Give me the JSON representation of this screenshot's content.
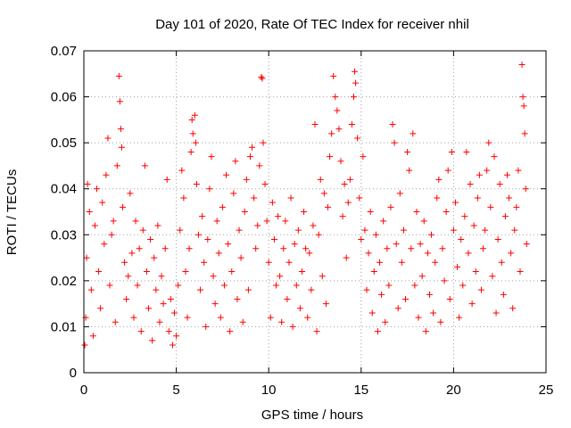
{
  "chart_data": {
    "type": "scatter",
    "title": "Day 101 of 2020, Rate Of TEC Index for receiver nhil",
    "xlabel": "GPS time / hours",
    "ylabel": "ROTI / TECUs",
    "xlim": [
      0,
      25
    ],
    "ylim": [
      0,
      0.07
    ],
    "x_ticks": [
      0,
      5,
      10,
      15,
      20,
      25
    ],
    "x_tick_labels": [
      "0",
      "5",
      "10",
      "15",
      "20",
      "25"
    ],
    "y_ticks": [
      0,
      0.01,
      0.02,
      0.03,
      0.04,
      0.05,
      0.06,
      0.07
    ],
    "y_tick_labels": [
      "0",
      "0.01",
      "0.02",
      "0.03",
      "0.04",
      "0.05",
      "0.06",
      "0.07"
    ],
    "grid": true,
    "marker": "+",
    "color": "#ff0000",
    "series": [
      {
        "name": "ROTI",
        "points": [
          [
            0.05,
            0.006
          ],
          [
            0.1,
            0.012
          ],
          [
            0.15,
            0.025
          ],
          [
            0.2,
            0.041
          ],
          [
            0.3,
            0.035
          ],
          [
            0.4,
            0.018
          ],
          [
            0.5,
            0.008
          ],
          [
            0.6,
            0.032
          ],
          [
            0.7,
            0.04
          ],
          [
            0.8,
            0.022
          ],
          [
            0.9,
            0.014
          ],
          [
            1.0,
            0.037
          ],
          [
            1.1,
            0.028
          ],
          [
            1.2,
            0.043
          ],
          [
            1.3,
            0.051
          ],
          [
            1.4,
            0.019
          ],
          [
            1.5,
            0.03
          ],
          [
            1.6,
            0.033
          ],
          [
            1.7,
            0.011
          ],
          [
            1.8,
            0.045
          ],
          [
            1.9,
            0.0645
          ],
          [
            1.95,
            0.059
          ],
          [
            2.0,
            0.053
          ],
          [
            2.05,
            0.049
          ],
          [
            2.1,
            0.036
          ],
          [
            2.2,
            0.024
          ],
          [
            2.3,
            0.016
          ],
          [
            2.4,
            0.021
          ],
          [
            2.5,
            0.039
          ],
          [
            2.6,
            0.026
          ],
          [
            2.7,
            0.012
          ],
          [
            2.8,
            0.033
          ],
          [
            2.9,
            0.019
          ],
          [
            3.0,
            0.027
          ],
          [
            3.1,
            0.009
          ],
          [
            3.2,
            0.031
          ],
          [
            3.3,
            0.045
          ],
          [
            3.4,
            0.022
          ],
          [
            3.5,
            0.014
          ],
          [
            3.6,
            0.029
          ],
          [
            3.7,
            0.007
          ],
          [
            3.8,
            0.025
          ],
          [
            3.9,
            0.018
          ],
          [
            4.0,
            0.032
          ],
          [
            4.1,
            0.011
          ],
          [
            4.2,
            0.021
          ],
          [
            4.3,
            0.015
          ],
          [
            4.4,
            0.027
          ],
          [
            4.5,
            0.042
          ],
          [
            4.6,
            0.009
          ],
          [
            4.7,
            0.016
          ],
          [
            4.8,
            0.006
          ],
          [
            4.9,
            0.013
          ],
          [
            5.0,
            0.008
          ],
          [
            5.1,
            0.019
          ],
          [
            5.2,
            0.031
          ],
          [
            5.3,
            0.044
          ],
          [
            5.4,
            0.038
          ],
          [
            5.5,
            0.022
          ],
          [
            5.6,
            0.012
          ],
          [
            5.7,
            0.027
          ],
          [
            5.8,
            0.048
          ],
          [
            5.85,
            0.055
          ],
          [
            5.9,
            0.052
          ],
          [
            6.0,
            0.056
          ],
          [
            6.05,
            0.05
          ],
          [
            6.1,
            0.041
          ],
          [
            6.2,
            0.03
          ],
          [
            6.3,
            0.018
          ],
          [
            6.4,
            0.034
          ],
          [
            6.5,
            0.024
          ],
          [
            6.6,
            0.01
          ],
          [
            6.7,
            0.029
          ],
          [
            6.8,
            0.04
          ],
          [
            6.9,
            0.047
          ],
          [
            7.0,
            0.021
          ],
          [
            7.1,
            0.015
          ],
          [
            7.2,
            0.033
          ],
          [
            7.3,
            0.026
          ],
          [
            7.4,
            0.012
          ],
          [
            7.5,
            0.036
          ],
          [
            7.6,
            0.019
          ],
          [
            7.7,
            0.043
          ],
          [
            7.8,
            0.028
          ],
          [
            7.9,
            0.009
          ],
          [
            8.0,
            0.022
          ],
          [
            8.1,
            0.039
          ],
          [
            8.2,
            0.046
          ],
          [
            8.3,
            0.016
          ],
          [
            8.4,
            0.031
          ],
          [
            8.5,
            0.025
          ],
          [
            8.6,
            0.011
          ],
          [
            8.7,
            0.035
          ],
          [
            8.8,
            0.042
          ],
          [
            8.9,
            0.018
          ],
          [
            9.0,
            0.047
          ],
          [
            9.1,
            0.049
          ],
          [
            9.2,
            0.038
          ],
          [
            9.3,
            0.027
          ],
          [
            9.4,
            0.032
          ],
          [
            9.5,
            0.045
          ],
          [
            9.6,
            0.0643
          ],
          [
            9.65,
            0.064
          ],
          [
            9.7,
            0.05
          ],
          [
            9.8,
            0.041
          ],
          [
            9.9,
            0.033
          ],
          [
            10.0,
            0.024
          ],
          [
            10.1,
            0.012
          ],
          [
            10.2,
            0.037
          ],
          [
            10.3,
            0.029
          ],
          [
            10.4,
            0.019
          ],
          [
            10.5,
            0.034
          ],
          [
            10.6,
            0.021
          ],
          [
            10.7,
            0.011
          ],
          [
            10.8,
            0.027
          ],
          [
            10.9,
            0.033
          ],
          [
            11.0,
            0.016
          ],
          [
            11.1,
            0.024
          ],
          [
            11.2,
            0.038
          ],
          [
            11.3,
            0.01
          ],
          [
            11.4,
            0.028
          ],
          [
            11.5,
            0.019
          ],
          [
            11.6,
            0.031
          ],
          [
            11.7,
            0.014
          ],
          [
            11.8,
            0.022
          ],
          [
            11.9,
            0.035
          ],
          [
            12.0,
            0.027
          ],
          [
            12.1,
            0.012
          ],
          [
            12.2,
            0.026
          ],
          [
            12.3,
            0.018
          ],
          [
            12.4,
            0.032
          ],
          [
            12.5,
            0.054
          ],
          [
            12.6,
            0.009
          ],
          [
            12.7,
            0.03
          ],
          [
            12.8,
            0.042
          ],
          [
            12.9,
            0.021
          ],
          [
            13.0,
            0.039
          ],
          [
            13.1,
            0.015
          ],
          [
            13.2,
            0.036
          ],
          [
            13.3,
            0.047
          ],
          [
            13.4,
            0.052
          ],
          [
            13.5,
            0.0645
          ],
          [
            13.6,
            0.06
          ],
          [
            13.7,
            0.057
          ],
          [
            13.8,
            0.053
          ],
          [
            13.9,
            0.046
          ],
          [
            14.0,
            0.034
          ],
          [
            14.1,
            0.041
          ],
          [
            14.2,
            0.025
          ],
          [
            14.3,
            0.037
          ],
          [
            14.4,
            0.042
          ],
          [
            14.5,
            0.054
          ],
          [
            14.6,
            0.06
          ],
          [
            14.65,
            0.0655
          ],
          [
            14.7,
            0.063
          ],
          [
            14.8,
            0.051
          ],
          [
            14.9,
            0.038
          ],
          [
            15.0,
            0.029
          ],
          [
            15.1,
            0.047
          ],
          [
            15.2,
            0.031
          ],
          [
            15.3,
            0.018
          ],
          [
            15.4,
            0.026
          ],
          [
            15.5,
            0.035
          ],
          [
            15.6,
            0.013
          ],
          [
            15.7,
            0.022
          ],
          [
            15.8,
            0.03
          ],
          [
            15.9,
            0.009
          ],
          [
            16.0,
            0.024
          ],
          [
            16.1,
            0.017
          ],
          [
            16.2,
            0.033
          ],
          [
            16.3,
            0.011
          ],
          [
            16.4,
            0.027
          ],
          [
            16.5,
            0.019
          ],
          [
            16.6,
            0.036
          ],
          [
            16.7,
            0.054
          ],
          [
            16.8,
            0.05
          ],
          [
            16.9,
            0.028
          ],
          [
            17.0,
            0.014
          ],
          [
            17.1,
            0.039
          ],
          [
            17.2,
            0.024
          ],
          [
            17.3,
            0.031
          ],
          [
            17.4,
            0.016
          ],
          [
            17.5,
            0.048
          ],
          [
            17.6,
            0.044
          ],
          [
            17.7,
            0.027
          ],
          [
            17.8,
            0.052
          ],
          [
            17.9,
            0.019
          ],
          [
            18.0,
            0.035
          ],
          [
            18.1,
            0.012
          ],
          [
            18.2,
            0.028
          ],
          [
            18.3,
            0.021
          ],
          [
            18.4,
            0.033
          ],
          [
            18.5,
            0.009
          ],
          [
            18.6,
            0.026
          ],
          [
            18.7,
            0.017
          ],
          [
            18.8,
            0.03
          ],
          [
            18.9,
            0.013
          ],
          [
            19.0,
            0.024
          ],
          [
            19.1,
            0.038
          ],
          [
            19.2,
            0.042
          ],
          [
            19.3,
            0.011
          ],
          [
            19.4,
            0.027
          ],
          [
            19.5,
            0.02
          ],
          [
            19.6,
            0.035
          ],
          [
            19.7,
            0.044
          ],
          [
            19.8,
            0.016
          ],
          [
            19.9,
            0.048
          ],
          [
            20.0,
            0.031
          ],
          [
            20.1,
            0.037
          ],
          [
            20.2,
            0.023
          ],
          [
            20.3,
            0.012
          ],
          [
            20.4,
            0.029
          ],
          [
            20.5,
            0.019
          ],
          [
            20.6,
            0.034
          ],
          [
            20.7,
            0.048
          ],
          [
            20.8,
            0.026
          ],
          [
            20.9,
            0.041
          ],
          [
            21.0,
            0.015
          ],
          [
            21.1,
            0.032
          ],
          [
            21.2,
            0.022
          ],
          [
            21.3,
            0.038
          ],
          [
            21.4,
            0.043
          ],
          [
            21.5,
            0.018
          ],
          [
            21.6,
            0.027
          ],
          [
            21.7,
            0.031
          ],
          [
            21.8,
            0.044
          ],
          [
            21.9,
            0.05
          ],
          [
            22.0,
            0.036
          ],
          [
            22.1,
            0.021
          ],
          [
            22.2,
            0.047
          ],
          [
            22.3,
            0.013
          ],
          [
            22.4,
            0.029
          ],
          [
            22.5,
            0.041
          ],
          [
            22.6,
            0.024
          ],
          [
            22.7,
            0.017
          ],
          [
            22.8,
            0.034
          ],
          [
            22.9,
            0.043
          ],
          [
            23.0,
            0.038
          ],
          [
            23.1,
            0.026
          ],
          [
            23.2,
            0.014
          ],
          [
            23.3,
            0.031
          ],
          [
            23.4,
            0.036
          ],
          [
            23.5,
            0.044
          ],
          [
            23.6,
            0.022
          ],
          [
            23.7,
            0.067
          ],
          [
            23.75,
            0.06
          ],
          [
            23.8,
            0.058
          ],
          [
            23.85,
            0.052
          ],
          [
            23.9,
            0.04
          ],
          [
            23.95,
            0.028
          ]
        ]
      }
    ]
  }
}
